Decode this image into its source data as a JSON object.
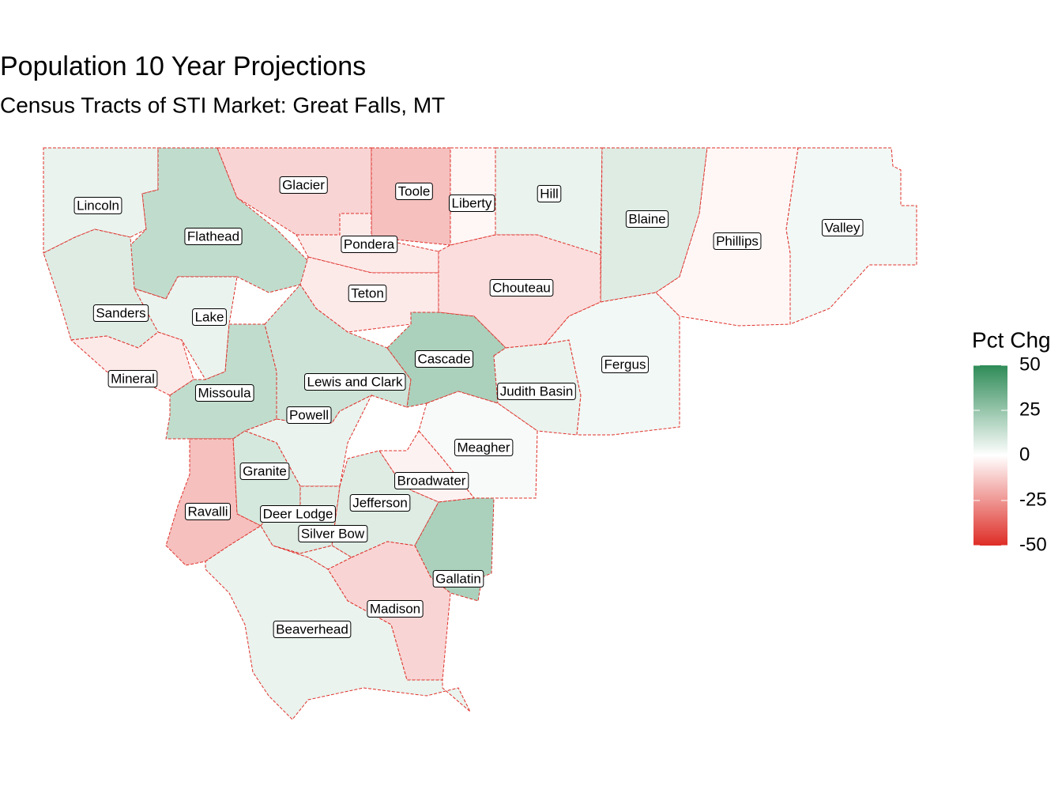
{
  "title": "Population 10 Year Projections",
  "subtitle": "Census Tracts of STI Market: Great Falls, MT",
  "legend": {
    "title": "Pct Chg",
    "range": [
      -50,
      50
    ],
    "ticks": [
      50,
      25,
      0,
      -25,
      -50
    ],
    "colors": {
      "low": "#de2d26",
      "mid": "#ffffff",
      "high": "#2e8b57"
    }
  },
  "counties": [
    {
      "name": "Lincoln",
      "value": 5
    },
    {
      "name": "Flathead",
      "value": 15
    },
    {
      "name": "Glacier",
      "value": -10
    },
    {
      "name": "Toole",
      "value": -15
    },
    {
      "name": "Liberty",
      "value": -2
    },
    {
      "name": "Hill",
      "value": 5
    },
    {
      "name": "Blaine",
      "value": 8
    },
    {
      "name": "Phillips",
      "value": -2
    },
    {
      "name": "Valley",
      "value": 3
    },
    {
      "name": "Pondera",
      "value": -5
    },
    {
      "name": "Teton",
      "value": -5
    },
    {
      "name": "Chouteau",
      "value": -8
    },
    {
      "name": "Sanders",
      "value": 8
    },
    {
      "name": "Lake",
      "value": 5
    },
    {
      "name": "Mineral",
      "value": -5
    },
    {
      "name": "Missoula",
      "value": 15
    },
    {
      "name": "Lewis and Clark",
      "value": 12
    },
    {
      "name": "Cascade",
      "value": 20
    },
    {
      "name": "Judith Basin",
      "value": 5
    },
    {
      "name": "Fergus",
      "value": 3
    },
    {
      "name": "Powell",
      "value": 5
    },
    {
      "name": "Meagher",
      "value": 2
    },
    {
      "name": "Broadwater",
      "value": -3
    },
    {
      "name": "Granite",
      "value": 10
    },
    {
      "name": "Ravalli",
      "value": -15
    },
    {
      "name": "Jefferson",
      "value": 8
    },
    {
      "name": "Deer Lodge",
      "value": 8
    },
    {
      "name": "Silver Bow",
      "value": 5
    },
    {
      "name": "Gallatin",
      "value": 20
    },
    {
      "name": "Madison",
      "value": -10
    },
    {
      "name": "Beaverhead",
      "value": 5
    }
  ]
}
